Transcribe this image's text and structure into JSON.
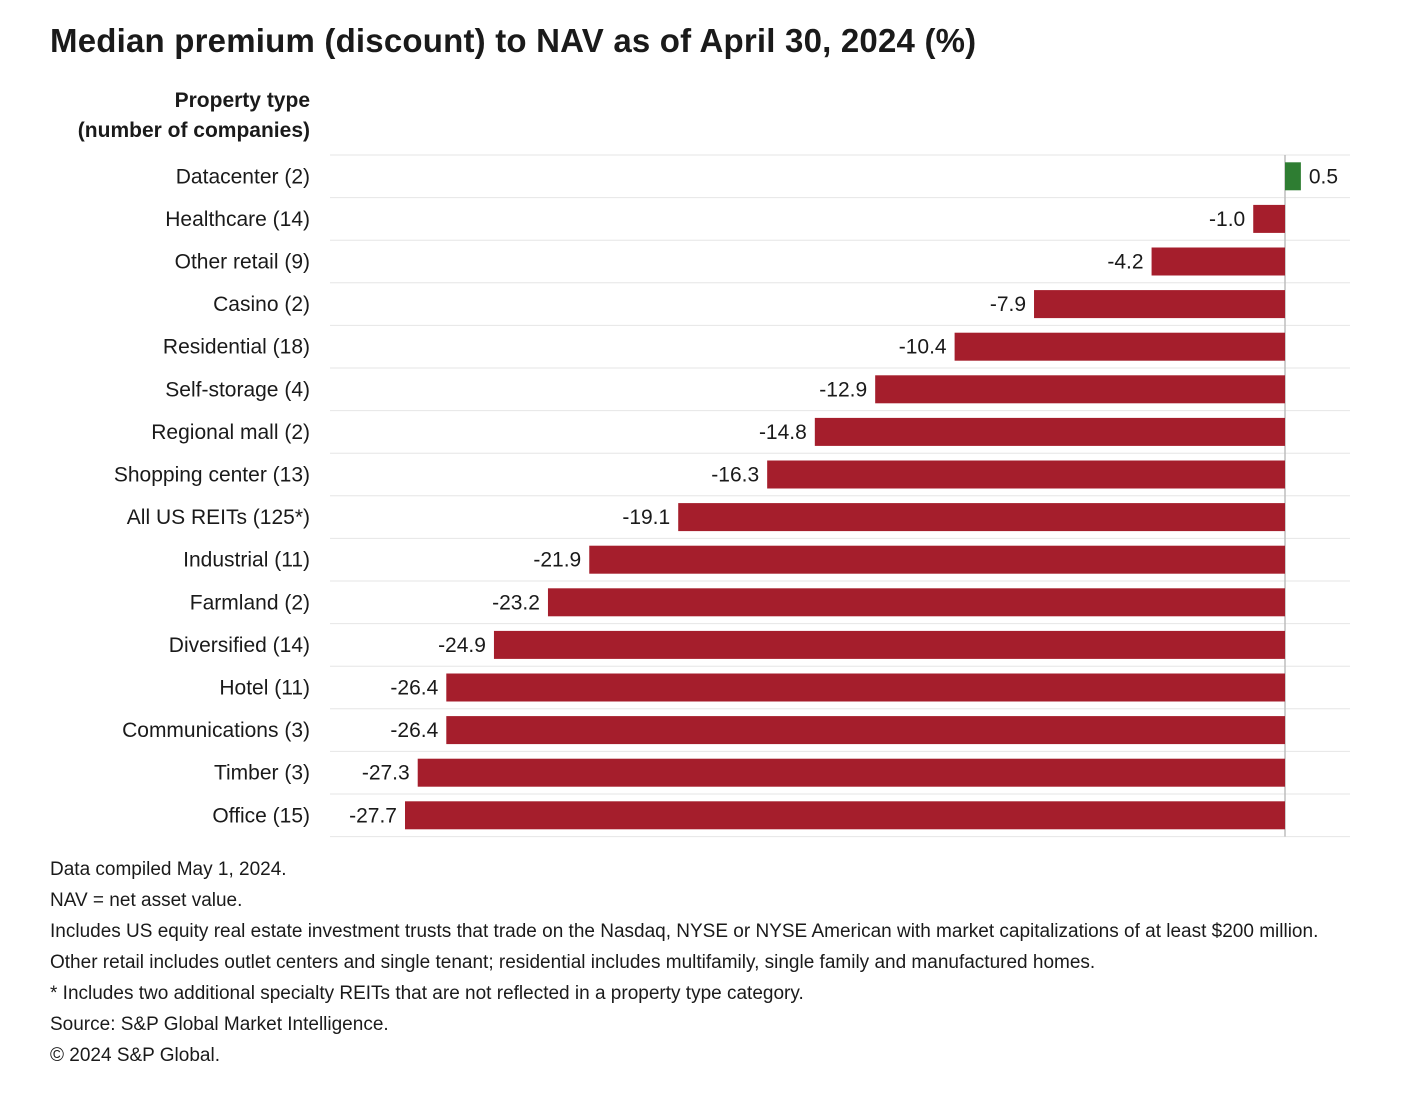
{
  "chart_data": {
    "type": "bar",
    "orientation": "horizontal",
    "title": "Median premium (discount) to NAV as of April 30, 2024 (%)",
    "ylabel_lines": [
      "Property type",
      "(number of companies)"
    ],
    "categories": [
      "Datacenter (2)",
      "Healthcare (14)",
      "Other retail (9)",
      "Casino (2)",
      "Residential (18)",
      "Self-storage (4)",
      "Regional mall (2)",
      "Shopping center (13)",
      "All US REITs (125*)",
      "Industrial (11)",
      "Farmland (2)",
      "Diversified (14)",
      "Hotel (11)",
      "Communications (3)",
      "Timber (3)",
      "Office (15)"
    ],
    "values": [
      0.5,
      -1.0,
      -4.2,
      -7.9,
      -10.4,
      -12.9,
      -14.8,
      -16.3,
      -19.1,
      -21.9,
      -23.2,
      -24.9,
      -26.4,
      -26.4,
      -27.3,
      -27.7
    ],
    "value_labels": [
      "0.5",
      "-1.0",
      "-4.2",
      "-7.9",
      "-10.4",
      "-12.9",
      "-14.8",
      "-16.3",
      "-19.1",
      "-21.9",
      "-23.2",
      "-24.9",
      "-26.4",
      "-26.4",
      "-27.3",
      "-27.7"
    ],
    "xlim": [
      -28.5,
      2
    ],
    "grid": true,
    "colors": {
      "positive": "#2e7d32",
      "negative": "#a51e2c",
      "grid": "#e6e6e6",
      "zero_line": "#bdbdbd"
    }
  },
  "notes": [
    "Data compiled May 1, 2024.",
    "NAV = net asset value.",
    "Includes US equity real estate investment trusts that trade on the Nasdaq, NYSE or NYSE American with market capitalizations of at least $200 million.",
    "Other retail includes outlet centers and single tenant; residential includes multifamily, single family and manufactured homes.",
    "* Includes two additional specialty REITs that are not reflected in a property type category.",
    "Source: S&P Global Market Intelligence.",
    "© 2024 S&P Global."
  ]
}
